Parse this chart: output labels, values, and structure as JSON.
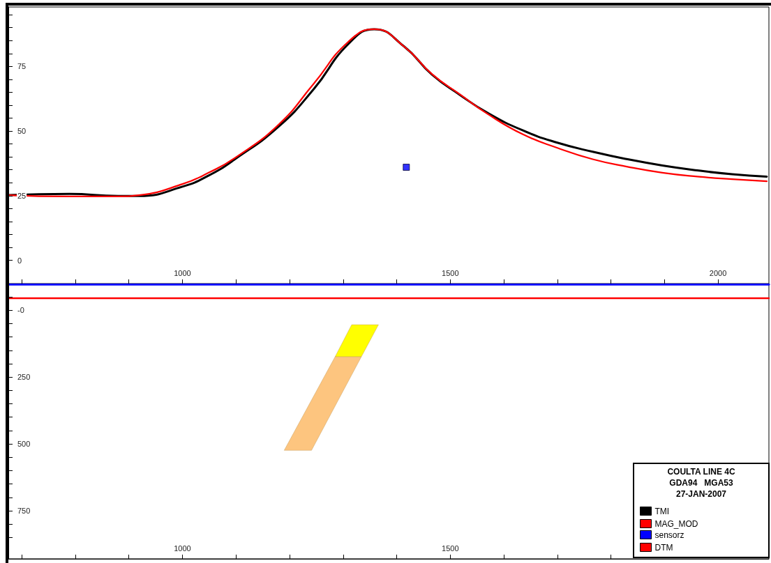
{
  "chart_data": [
    {
      "type": "line",
      "xlim": [
        675,
        2095
      ],
      "xticks": [
        {
          "value": 700,
          "label": null
        },
        {
          "value": 800,
          "label": null
        },
        {
          "value": 900,
          "label": null
        },
        1000,
        {
          "value": 1100,
          "label": null
        },
        {
          "value": 1200,
          "label": null
        },
        {
          "value": 1300,
          "label": null
        },
        {
          "value": 1400,
          "label": null
        },
        1500,
        {
          "value": 1600,
          "label": null
        },
        {
          "value": 1700,
          "label": null
        },
        {
          "value": 1800,
          "label": null
        },
        {
          "value": 1900,
          "label": null
        },
        2000
      ],
      "ylim": [
        -9,
        98
      ],
      "yticks": [
        0,
        {
          "value": 5,
          "label": null
        },
        {
          "value": 10,
          "label": null
        },
        {
          "value": 15,
          "label": null
        },
        {
          "value": 20,
          "label": null
        },
        25,
        {
          "value": 30,
          "label": null
        },
        {
          "value": 35,
          "label": null
        },
        {
          "value": 40,
          "label": null
        },
        {
          "value": 45,
          "label": null
        },
        50,
        {
          "value": 55,
          "label": null
        },
        {
          "value": 60,
          "label": null
        },
        {
          "value": 65,
          "label": null
        },
        {
          "value": 70,
          "label": null
        },
        75,
        {
          "value": 80,
          "label": null
        },
        {
          "value": 85,
          "label": null
        },
        {
          "value": 90,
          "label": null
        },
        {
          "value": 95,
          "label": null
        }
      ],
      "grid": false,
      "legend": "bottom right",
      "marker": "none",
      "line_style": "solid",
      "series": [
        {
          "name": "TMI",
          "color": "#000000",
          "x": [
            675,
            789,
            880,
            919,
            1000,
            1049,
            1098,
            1180,
            1245,
            1310,
            1358,
            1414,
            1466,
            1518,
            1570,
            1635,
            1700,
            1766,
            1831,
            1896,
            1961,
            2026,
            2091
          ],
          "values": [
            25.2,
            25.7,
            24.9,
            24.9,
            28.5,
            32.8,
            39.1,
            51.8,
            66.2,
            83.7,
            89.4,
            82.7,
            71.8,
            64,
            57,
            50.3,
            45.5,
            42,
            39.1,
            36.7,
            34.8,
            33.3,
            32.4
          ]
        },
        {
          "name": "MAG_MOD",
          "color": "#ff0000",
          "x": [
            675,
            789,
            880,
            919,
            1000,
            1049,
            1098,
            1180,
            1245,
            1310,
            1358,
            1414,
            1466,
            1518,
            1570,
            1635,
            1700,
            1766,
            1831,
            1896,
            1961,
            2026,
            2091
          ],
          "values": [
            25.2,
            24.7,
            24.7,
            25.2,
            29.5,
            33.9,
            39.6,
            52.6,
            68.3,
            84.6,
            89.4,
            82.7,
            72,
            64.2,
            56.6,
            48.8,
            43.5,
            39.1,
            36.2,
            33.9,
            32.4,
            31.4,
            30.6
          ]
        },
        {
          "type": "scatter",
          "marker": "square",
          "color": "#0000ff",
          "x": [
            1418
          ],
          "values": [
            36
          ]
        }
      ]
    },
    {
      "type": "line",
      "xlim": [
        675,
        2095
      ],
      "xticks": [
        {
          "value": 700,
          "label": null
        },
        {
          "value": 800,
          "label": null
        },
        {
          "value": 900,
          "label": null
        },
        1000,
        {
          "value": 1100,
          "label": null
        },
        {
          "value": 1200,
          "label": null
        },
        {
          "value": 1300,
          "label": null
        },
        {
          "value": 1400,
          "label": null
        },
        1500,
        {
          "value": 1600,
          "label": null
        },
        {
          "value": 1700,
          "label": null
        },
        {
          "value": 1800,
          "label": null
        }
      ],
      "ylim": [
        930,
        -100
      ],
      "yticks": [
        {
          "value": -50,
          "label": null
        },
        {
          "value": 0,
          "label": "-0"
        },
        {
          "value": 50,
          "label": null
        },
        {
          "value": 100,
          "label": null
        },
        {
          "value": 150,
          "label": null
        },
        {
          "value": 200,
          "label": null
        },
        250,
        {
          "value": 300,
          "label": null
        },
        {
          "value": 350,
          "label": null
        },
        {
          "value": 400,
          "label": null
        },
        {
          "value": 450,
          "label": null
        },
        500,
        {
          "value": 550,
          "label": null
        },
        {
          "value": 600,
          "label": null
        },
        {
          "value": 650,
          "label": null
        },
        {
          "value": 700,
          "label": null
        },
        750,
        {
          "value": 800,
          "label": null
        },
        {
          "value": 850,
          "label": null
        }
      ],
      "grid": false,
      "legend": "bottom right",
      "marker": "none",
      "line_style": "solid",
      "annotations": [
        "COULTA LINE 4C",
        "GDA94   MGA53",
        "27-JAN-2007"
      ],
      "series": [
        {
          "name": "sensorz",
          "color": "#0000ff",
          "x": [
            675,
            2095
          ],
          "values": [
            -97,
            -97
          ]
        },
        {
          "name": "DTM",
          "color": "#ff0000",
          "x": [
            675,
            2095
          ],
          "values": [
            -45,
            -45
          ]
        },
        {
          "type": "area",
          "color": "#ffff00",
          "x": [
            1316,
            1366,
            1334,
            1285
          ],
          "values": [
            54,
            54,
            174,
            174
          ]
        },
        {
          "type": "area",
          "color": "#fdc57f",
          "x": [
            1285,
            1334,
            1241,
            1190
          ],
          "values": [
            174,
            174,
            524,
            524
          ]
        }
      ]
    }
  ]
}
